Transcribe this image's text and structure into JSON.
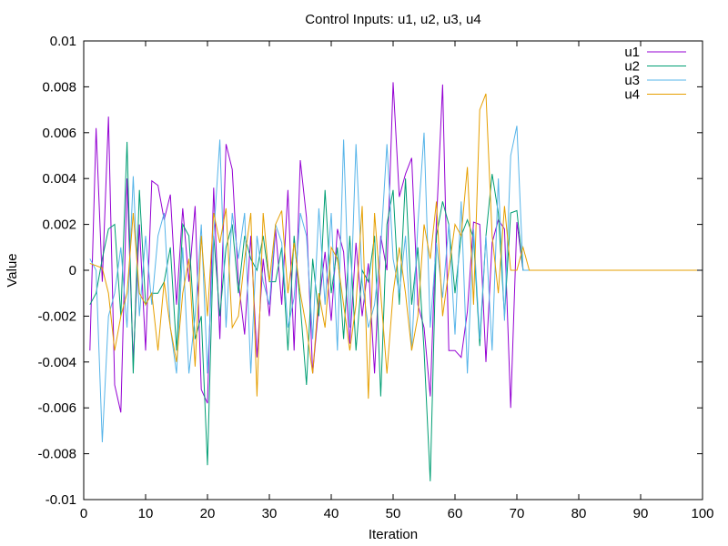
{
  "chart_data": {
    "type": "line",
    "title": "Control Inputs: u1, u2, u3, u4",
    "xlabel": "Iteration",
    "ylabel": "Value",
    "xlim": [
      0,
      100
    ],
    "ylim": [
      -0.01,
      0.01
    ],
    "xticks": [
      "0",
      "10",
      "20",
      "30",
      "40",
      "50",
      "60",
      "70",
      "80",
      "90",
      "100"
    ],
    "yticks": [
      "-0.01",
      "-0.008",
      "-0.006",
      "-0.004",
      "-0.002",
      "0",
      "0.002",
      "0.004",
      "0.006",
      "0.008",
      "0.01"
    ],
    "grid": false,
    "legend_position": "top-right",
    "series": [
      {
        "name": "u1",
        "color": "#9400d3",
        "x": [
          1,
          2,
          3,
          4,
          5,
          6,
          7,
          8,
          9,
          10,
          11,
          12,
          13,
          14,
          15,
          16,
          17,
          18,
          19,
          20,
          21,
          22,
          23,
          24,
          25,
          26,
          27,
          28,
          29,
          30,
          31,
          32,
          33,
          34,
          35,
          36,
          37,
          38,
          39,
          40,
          41,
          42,
          43,
          44,
          45,
          46,
          47,
          48,
          49,
          50,
          51,
          52,
          53,
          54,
          55,
          56,
          57,
          58,
          59,
          60,
          61,
          62,
          63,
          64,
          65,
          66,
          67,
          68,
          69,
          70,
          71,
          72,
          100
        ],
        "values": [
          -0.0035,
          0.0062,
          -0.0005,
          0.0067,
          -0.005,
          -0.0062,
          0.004,
          -0.004,
          0.002,
          -0.0035,
          0.0039,
          0.0037,
          0.0022,
          0.0033,
          -0.0015,
          0.0027,
          -0.0005,
          0.0028,
          -0.0052,
          -0.0058,
          0.0036,
          -0.003,
          0.0055,
          0.0044,
          -0.0005,
          -0.0028,
          0.0015,
          -0.0038,
          0.0005,
          -0.002,
          0.0018,
          -0.0015,
          0.0035,
          -0.0035,
          0.0048,
          0.0023,
          -0.0045,
          -0.0015,
          0.0008,
          -0.0022,
          0.0018,
          0.0008,
          -0.0032,
          0.0012,
          -0.002,
          0.0003,
          -0.0045,
          0.0015,
          0.0,
          0.0082,
          0.0032,
          0.0042,
          0.0049,
          -0.0015,
          -0.0025,
          -0.0055,
          0.0021,
          0.0081,
          -0.0035,
          -0.0035,
          -0.0038,
          -0.0018,
          0.0021,
          0.002,
          -0.004,
          0.0012,
          0.0022,
          0.0018,
          -0.006,
          0.0021,
          0.0,
          0.0,
          0.0
        ]
      },
      {
        "name": "u2",
        "color": "#009e73",
        "x": [
          1,
          2,
          3,
          4,
          5,
          6,
          7,
          8,
          9,
          10,
          11,
          12,
          13,
          14,
          15,
          16,
          17,
          18,
          19,
          20,
          21,
          22,
          23,
          24,
          25,
          26,
          27,
          28,
          29,
          30,
          31,
          32,
          33,
          34,
          35,
          36,
          37,
          38,
          39,
          40,
          41,
          42,
          43,
          44,
          45,
          46,
          47,
          48,
          49,
          50,
          51,
          52,
          53,
          54,
          55,
          56,
          57,
          58,
          59,
          60,
          61,
          62,
          63,
          64,
          65,
          66,
          67,
          68,
          69,
          70,
          71,
          72,
          100
        ],
        "values": [
          -0.0015,
          -0.001,
          0.0005,
          0.0018,
          0.002,
          -0.002,
          0.0056,
          -0.0045,
          0.0035,
          -0.0015,
          -0.001,
          -0.001,
          -0.0005,
          0.001,
          -0.0035,
          0.002,
          0.0015,
          -0.003,
          -0.002,
          -0.0085,
          0.0015,
          -0.002,
          0.001,
          0.002,
          -0.001,
          0.0015,
          0.0005,
          0.0,
          0.0015,
          -0.0005,
          -0.0005,
          0.001,
          -0.0035,
          0.0015,
          -0.0015,
          -0.005,
          0.0005,
          -0.002,
          0.0035,
          -0.001,
          0.001,
          -0.003,
          0.0015,
          -0.0035,
          0.0,
          -0.0005,
          0.0015,
          -0.0055,
          0.002,
          0.0035,
          -0.0015,
          0.004,
          -0.0015,
          0.001,
          -0.0035,
          -0.0092,
          0.0015,
          0.003,
          0.002,
          -0.001,
          0.0015,
          0.0022,
          0.0014,
          -0.0033,
          0.0015,
          0.0042,
          0.0025,
          -0.002,
          0.0025,
          0.0026,
          0.0,
          0.0,
          0.0
        ]
      },
      {
        "name": "u3",
        "color": "#56b4e9",
        "x": [
          1,
          2,
          3,
          4,
          5,
          6,
          7,
          8,
          9,
          10,
          11,
          12,
          13,
          14,
          15,
          16,
          17,
          18,
          19,
          20,
          21,
          22,
          23,
          24,
          25,
          26,
          27,
          28,
          29,
          30,
          31,
          32,
          33,
          34,
          35,
          36,
          37,
          38,
          39,
          40,
          41,
          42,
          43,
          44,
          45,
          46,
          47,
          48,
          49,
          50,
          51,
          52,
          53,
          54,
          55,
          56,
          57,
          58,
          59,
          60,
          61,
          62,
          63,
          64,
          65,
          66,
          67,
          68,
          69,
          70,
          71,
          72,
          100
        ],
        "values": [
          0.0005,
          0.0,
          -0.0075,
          -0.002,
          -0.001,
          0.001,
          -0.0025,
          0.0041,
          -0.002,
          0.0015,
          -0.0015,
          0.0015,
          0.0025,
          -0.0025,
          -0.0045,
          0.001,
          -0.0045,
          -0.002,
          0.002,
          -0.0045,
          0.0015,
          0.0057,
          -0.0025,
          0.0025,
          0.0005,
          0.0025,
          -0.0045,
          0.0015,
          -0.0005,
          -0.0015,
          0.002,
          0.0012,
          -0.0025,
          -0.0012,
          0.0025,
          0.0015,
          -0.003,
          0.0027,
          -0.0015,
          0.0025,
          -0.0035,
          0.0057,
          -0.0025,
          0.0055,
          -0.0005,
          -0.0025,
          -0.0015,
          0.001,
          0.0055,
          0.0005,
          -0.001,
          0.0015,
          -0.0035,
          0.002,
          0.006,
          -0.0025,
          0.0012,
          -0.0012,
          0.002,
          -0.0028,
          0.003,
          -0.0045,
          0.0018,
          -0.003,
          0.0015,
          -0.0035,
          0.004,
          -0.0022,
          0.005,
          0.0063,
          0.0,
          0.0,
          0.0
        ]
      },
      {
        "name": "u4",
        "color": "#e69f00",
        "x": [
          1,
          2,
          3,
          4,
          5,
          6,
          7,
          8,
          9,
          10,
          11,
          12,
          13,
          14,
          15,
          16,
          17,
          18,
          19,
          20,
          21,
          22,
          23,
          24,
          25,
          26,
          27,
          28,
          29,
          30,
          31,
          32,
          33,
          34,
          35,
          36,
          37,
          38,
          39,
          40,
          41,
          42,
          43,
          44,
          45,
          46,
          47,
          48,
          49,
          50,
          51,
          52,
          53,
          54,
          55,
          56,
          57,
          58,
          59,
          60,
          61,
          62,
          63,
          64,
          65,
          66,
          67,
          68,
          69,
          70,
          71,
          72,
          100
        ],
        "values": [
          0.0003,
          0.0002,
          0.0001,
          -0.001,
          -0.0035,
          -0.002,
          -0.001,
          0.0025,
          -0.001,
          -0.0015,
          -0.001,
          -0.0035,
          -0.0005,
          -0.0025,
          -0.004,
          -0.001,
          0.0005,
          -0.0042,
          0.0015,
          -0.002,
          0.0025,
          0.0012,
          0.0027,
          -0.0025,
          -0.002,
          0.0005,
          0.0025,
          -0.0055,
          0.0025,
          -0.0005,
          0.002,
          0.0026,
          -0.001,
          0.0012,
          -0.001,
          -0.0025,
          -0.0045,
          -0.001,
          -0.0025,
          0.001,
          0.0005,
          -0.0015,
          -0.0035,
          -0.0015,
          0.0028,
          -0.0056,
          0.0025,
          -0.001,
          -0.0045,
          -0.001,
          0.001,
          -0.001,
          -0.0035,
          -0.002,
          0.002,
          0.0005,
          0.003,
          -0.002,
          0.0,
          0.002,
          0.0015,
          0.0045,
          -0.0015,
          0.007,
          0.0077,
          0.0015,
          -0.001,
          0.0028,
          0.0,
          0.0,
          0.001,
          0.0,
          0.0
        ]
      }
    ]
  }
}
